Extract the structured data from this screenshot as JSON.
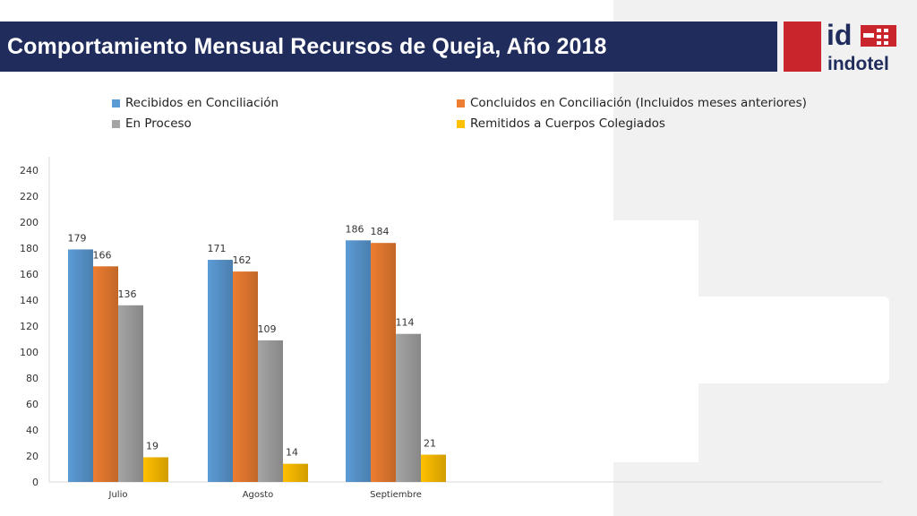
{
  "slide": {
    "title": "Comportamiento Mensual Recursos de Queja, Año 2018"
  },
  "logo": {
    "mark": "id",
    "name": "indotel",
    "brand_red": "#c8252c",
    "brand_navy": "#1f2c5c"
  },
  "chart_data": {
    "type": "bar",
    "title": "",
    "xlabel": "",
    "ylabel": "",
    "categories": [
      "Julio",
      "Agosto",
      "Septiembre"
    ],
    "ylim": [
      0,
      240
    ],
    "yticks": [
      0,
      20,
      40,
      60,
      80,
      100,
      120,
      140,
      160,
      180,
      200,
      220,
      240
    ],
    "grid": false,
    "legend_position": "top",
    "series": [
      {
        "name": "Recibidos en Conciliación",
        "color": "#5b9bd5",
        "values": [
          179,
          171,
          186
        ]
      },
      {
        "name": "Concluidos en Conciliación (Incluidos meses anteriores)",
        "color": "#ed7d31",
        "values": [
          166,
          162,
          184
        ]
      },
      {
        "name": "En Proceso",
        "color": "#a5a5a5",
        "values": [
          136,
          109,
          114
        ]
      },
      {
        "name": "Remitidos a Cuerpos Colegiados",
        "color": "#ffc000",
        "values": [
          19,
          14,
          21
        ]
      }
    ]
  }
}
